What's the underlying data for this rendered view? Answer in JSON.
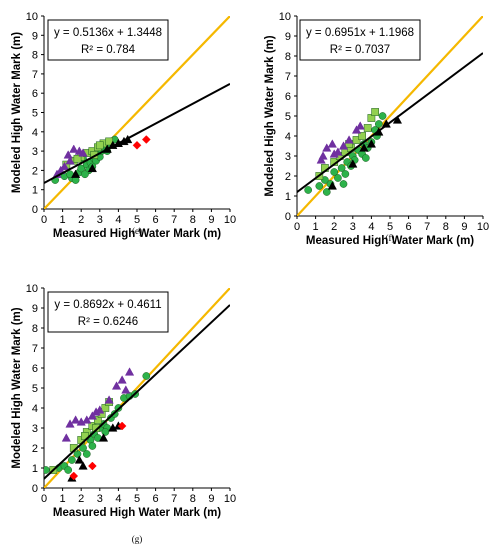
{
  "chart_data": [
    {
      "type": "scatter",
      "caption": "(e)",
      "xlabel": "Measured High Water Mark (m)",
      "ylabel": "Modeled High Water Mark (m)",
      "xlim": [
        0,
        10
      ],
      "ylim": [
        0,
        10
      ],
      "xticks": [
        "0",
        "1",
        "2",
        "3",
        "4",
        "5",
        "6",
        "7",
        "8",
        "9",
        "10"
      ],
      "yticks": [
        "0",
        "1",
        "2",
        "3",
        "4",
        "5",
        "6",
        "7",
        "8",
        "9",
        "10"
      ],
      "equation": "y = 0.5136x + 1.3448",
      "r2": "R² = 0.784",
      "fit": {
        "slope": 0.5136,
        "intercept": 1.3448
      },
      "reference_line": {
        "slope": 1,
        "intercept": 0,
        "color": "#f5b800"
      },
      "fit_color": "#000000",
      "grid": false,
      "series": [
        {
          "marker": "circle",
          "color": "#2db24a",
          "points": [
            [
              0.6,
              1.5
            ],
            [
              1.1,
              1.7
            ],
            [
              1.5,
              1.6
            ],
            [
              1.9,
              1.9
            ],
            [
              2.0,
              2.1
            ],
            [
              2.3,
              2.3
            ],
            [
              2.4,
              2.0
            ],
            [
              2.5,
              2.4
            ],
            [
              2.6,
              2.2
            ],
            [
              2.7,
              2.6
            ],
            [
              2.8,
              2.5
            ],
            [
              2.9,
              2.8
            ],
            [
              3.0,
              2.7
            ],
            [
              3.1,
              3.0
            ],
            [
              3.2,
              3.2
            ],
            [
              3.3,
              3.1
            ],
            [
              3.5,
              3.3
            ],
            [
              3.6,
              3.5
            ],
            [
              3.8,
              3.6
            ],
            [
              2.2,
              1.8
            ],
            [
              1.7,
              1.5
            ],
            [
              2.1,
              2.6
            ],
            [
              1.4,
              1.8
            ],
            [
              3.4,
              3.0
            ]
          ]
        },
        {
          "marker": "square",
          "color": "#92d050",
          "points": [
            [
              1.2,
              2.3
            ],
            [
              1.6,
              2.5
            ],
            [
              2.0,
              2.7
            ],
            [
              2.3,
              2.9
            ],
            [
              2.6,
              3.0
            ],
            [
              2.9,
              3.2
            ],
            [
              3.2,
              3.4
            ],
            [
              3.5,
              3.5
            ],
            [
              1.8,
              2.6
            ],
            [
              2.7,
              2.8
            ],
            [
              3.0,
              3.3
            ]
          ]
        },
        {
          "marker": "triangle",
          "color": "#7030a0",
          "points": [
            [
              0.7,
              1.8
            ],
            [
              1.1,
              2.2
            ],
            [
              1.3,
              2.8
            ],
            [
              1.6,
              3.1
            ],
            [
              1.9,
              3.0
            ],
            [
              2.1,
              2.9
            ],
            [
              1.4,
              2.5
            ],
            [
              0.9,
              2.0
            ]
          ]
        },
        {
          "marker": "triangle",
          "color": "#000000",
          "points": [
            [
              1.7,
              1.8
            ],
            [
              2.6,
              2.1
            ],
            [
              3.4,
              3.1
            ],
            [
              3.7,
              3.3
            ],
            [
              4.0,
              3.4
            ],
            [
              4.3,
              3.5
            ],
            [
              4.5,
              3.6
            ]
          ]
        },
        {
          "marker": "diamond",
          "color": "#ff0000",
          "points": [
            [
              5.0,
              3.3
            ],
            [
              5.5,
              3.6
            ]
          ]
        }
      ]
    },
    {
      "type": "scatter",
      "caption": "(f)",
      "xlabel": "Measured High Water Mark (m)",
      "ylabel": "Modeled High Water Mark (m)",
      "xlim": [
        0,
        10
      ],
      "ylim": [
        0,
        10
      ],
      "xticks": [
        "0",
        "1",
        "2",
        "3",
        "4",
        "5",
        "6",
        "7",
        "8",
        "9",
        "10"
      ],
      "yticks": [
        "0",
        "1",
        "2",
        "3",
        "4",
        "5",
        "6",
        "7",
        "8",
        "9",
        "10"
      ],
      "equation": "y = 0.6951x + 1.1968",
      "r2": "R² = 0.7037",
      "fit": {
        "slope": 0.6951,
        "intercept": 1.1968
      },
      "reference_line": {
        "slope": 1,
        "intercept": 0,
        "color": "#f5b800"
      },
      "fit_color": "#000000",
      "grid": false,
      "series": [
        {
          "marker": "circle",
          "color": "#2db24a",
          "points": [
            [
              0.6,
              1.3
            ],
            [
              1.2,
              1.5
            ],
            [
              1.5,
              1.8
            ],
            [
              1.8,
              1.6
            ],
            [
              2.0,
              2.2
            ],
            [
              2.2,
              1.9
            ],
            [
              2.4,
              2.4
            ],
            [
              2.6,
              2.1
            ],
            [
              2.7,
              2.7
            ],
            [
              2.9,
              2.5
            ],
            [
              3.0,
              3.0
            ],
            [
              3.1,
              2.8
            ],
            [
              3.3,
              3.3
            ],
            [
              3.5,
              3.1
            ],
            [
              3.6,
              3.6
            ],
            [
              3.8,
              3.4
            ],
            [
              4.0,
              3.7
            ],
            [
              4.2,
              4.3
            ],
            [
              4.4,
              4.6
            ],
            [
              4.6,
              5.0
            ],
            [
              1.6,
              1.2
            ],
            [
              2.5,
              1.6
            ],
            [
              3.7,
              2.9
            ],
            [
              4.3,
              4.0
            ]
          ]
        },
        {
          "marker": "square",
          "color": "#92d050",
          "points": [
            [
              1.2,
              2.0
            ],
            [
              1.5,
              2.4
            ],
            [
              2.0,
              2.7
            ],
            [
              2.3,
              3.0
            ],
            [
              2.6,
              3.2
            ],
            [
              2.9,
              3.4
            ],
            [
              3.2,
              3.8
            ],
            [
              3.5,
              4.0
            ],
            [
              3.8,
              4.4
            ],
            [
              4.0,
              4.9
            ],
            [
              4.2,
              5.2
            ],
            [
              2.8,
              3.6
            ]
          ]
        },
        {
          "marker": "triangle",
          "color": "#7030a0",
          "points": [
            [
              1.3,
              2.8
            ],
            [
              1.6,
              3.4
            ],
            [
              1.9,
              3.6
            ],
            [
              2.2,
              3.2
            ],
            [
              2.5,
              3.5
            ],
            [
              2.8,
              3.8
            ],
            [
              3.2,
              4.3
            ],
            [
              3.4,
              4.5
            ],
            [
              1.4,
              3.0
            ],
            [
              2.0,
              3.1
            ]
          ]
        },
        {
          "marker": "triangle",
          "color": "#000000",
          "points": [
            [
              1.9,
              1.5
            ],
            [
              3.0,
              2.6
            ],
            [
              3.6,
              3.4
            ],
            [
              4.0,
              3.6
            ],
            [
              4.4,
              4.2
            ],
            [
              4.8,
              4.6
            ],
            [
              5.4,
              4.8
            ]
          ]
        },
        {
          "marker": "diamond",
          "color": "#ff0000",
          "points": []
        }
      ]
    },
    {
      "type": "scatter",
      "caption": "(g)",
      "xlabel": "Measured High Water Mark (m)",
      "ylabel": "Modeled High Water Mark (m)",
      "xlim": [
        0,
        10
      ],
      "ylim": [
        0,
        10
      ],
      "xticks": [
        "0",
        "1",
        "2",
        "3",
        "4",
        "5",
        "6",
        "7",
        "8",
        "9",
        "10"
      ],
      "yticks": [
        "0",
        "1",
        "2",
        "3",
        "4",
        "5",
        "6",
        "7",
        "8",
        "9",
        "10"
      ],
      "equation": "y = 0.8692x + 0.4611",
      "r2": "R² = 0.6246",
      "fit": {
        "slope": 0.8692,
        "intercept": 0.4611
      },
      "reference_line": {
        "slope": 1,
        "intercept": 0,
        "color": "#f5b800"
      },
      "fit_color": "#000000",
      "grid": false,
      "series": [
        {
          "marker": "circle",
          "color": "#2db24a",
          "points": [
            [
              0.1,
              0.9
            ],
            [
              0.8,
              1.0
            ],
            [
              1.1,
              1.1
            ],
            [
              1.5,
              1.4
            ],
            [
              1.8,
              1.7
            ],
            [
              2.1,
              2.0
            ],
            [
              2.3,
              1.7
            ],
            [
              2.5,
              2.4
            ],
            [
              2.7,
              2.7
            ],
            [
              2.9,
              2.5
            ],
            [
              3.0,
              3.0
            ],
            [
              3.2,
              3.2
            ],
            [
              3.4,
              3.0
            ],
            [
              3.6,
              3.5
            ],
            [
              3.8,
              3.7
            ],
            [
              4.0,
              4.0
            ],
            [
              4.3,
              4.5
            ],
            [
              4.6,
              4.6
            ],
            [
              4.9,
              4.7
            ],
            [
              5.5,
              5.6
            ],
            [
              1.3,
              0.9
            ],
            [
              2.6,
              2.1
            ],
            [
              3.3,
              2.8
            ]
          ]
        },
        {
          "marker": "square",
          "color": "#92d050",
          "points": [
            [
              0.5,
              0.9
            ],
            [
              1.6,
              2.0
            ],
            [
              2.0,
              2.4
            ],
            [
              2.3,
              2.8
            ],
            [
              2.6,
              3.1
            ],
            [
              2.9,
              3.4
            ],
            [
              3.1,
              3.7
            ],
            [
              3.3,
              4.0
            ],
            [
              3.5,
              4.3
            ],
            [
              2.8,
              3.0
            ],
            [
              2.2,
              2.6
            ]
          ]
        },
        {
          "marker": "triangle",
          "color": "#7030a0",
          "points": [
            [
              1.2,
              2.5
            ],
            [
              1.4,
              3.2
            ],
            [
              1.7,
              3.4
            ],
            [
              2.0,
              3.3
            ],
            [
              2.3,
              3.4
            ],
            [
              2.6,
              3.6
            ],
            [
              3.0,
              3.9
            ],
            [
              3.5,
              4.4
            ],
            [
              3.9,
              5.1
            ],
            [
              4.2,
              5.4
            ],
            [
              4.6,
              5.8
            ],
            [
              4.4,
              4.9
            ],
            [
              2.8,
              3.8
            ]
          ]
        },
        {
          "marker": "triangle",
          "color": "#000000",
          "points": [
            [
              1.5,
              0.5
            ],
            [
              1.9,
              1.4
            ],
            [
              2.1,
              1.1
            ],
            [
              3.2,
              2.5
            ],
            [
              3.7,
              3.0
            ],
            [
              4.0,
              3.1
            ]
          ]
        },
        {
          "marker": "diamond",
          "color": "#ff0000",
          "points": [
            [
              1.6,
              0.6
            ],
            [
              2.6,
              1.1
            ],
            [
              4.2,
              3.1
            ]
          ]
        }
      ]
    }
  ]
}
